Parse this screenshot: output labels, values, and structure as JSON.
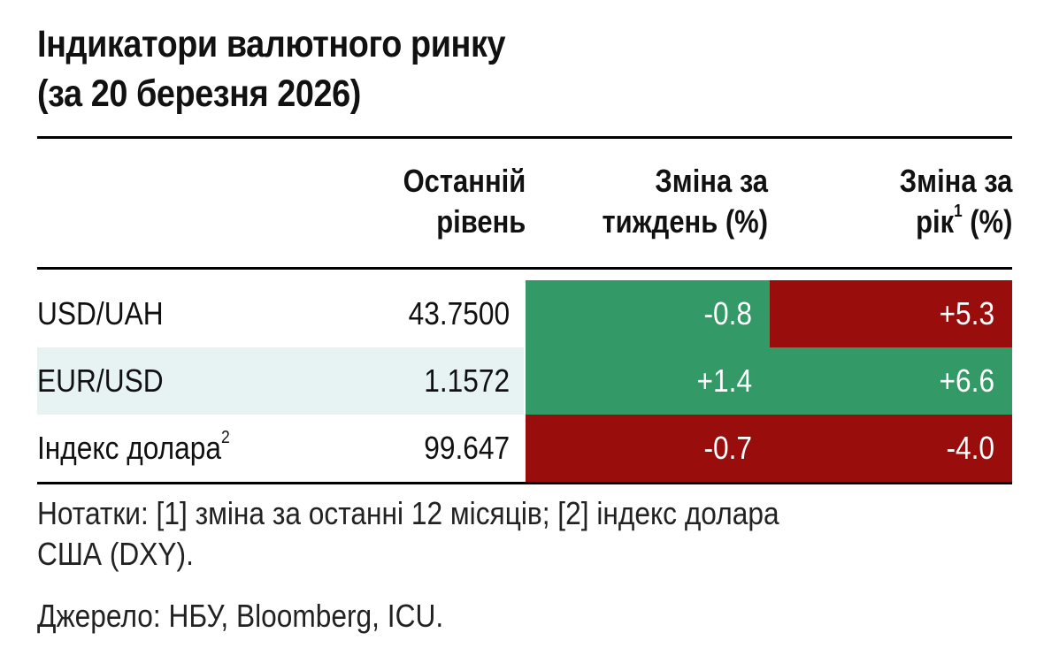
{
  "title": {
    "line1": "Індикатори валютного ринку",
    "line2": "(за 20 березня 2026)"
  },
  "colors": {
    "positive": "#339966",
    "negative": "#990D0D",
    "row_highlight": "#E7F3F3"
  },
  "table": {
    "headers": {
      "level_line1": "Останній",
      "level_line2": "рівень",
      "week_line1": "Зміна за",
      "week_line2": "тиждень (%)",
      "year_line1": "Зміна за",
      "year_line2_pre": "рік",
      "year_sup": "1",
      "year_line2_post": " (%)"
    },
    "rows": [
      {
        "name": "USD/UAH",
        "name_sup": "",
        "level": "43.7500",
        "week": "-0.8",
        "week_status": "positive",
        "year": "+5.3",
        "year_status": "negative",
        "highlight": false
      },
      {
        "name": "EUR/USD",
        "name_sup": "",
        "level": "1.1572",
        "week": "+1.4",
        "week_status": "positive",
        "year": "+6.6",
        "year_status": "positive",
        "highlight": true
      },
      {
        "name": "Індекс долара",
        "name_sup": "2",
        "level": "99.647",
        "week": "-0.7",
        "week_status": "negative",
        "year": "-4.0",
        "year_status": "negative",
        "highlight": false
      }
    ]
  },
  "notes": {
    "line1": "Нотатки: [1] зміна за останні 12 місяців; [2] індекс долара",
    "line2": "США (DXY)."
  },
  "source": "Джерело: НБУ, Bloomberg, ICU."
}
